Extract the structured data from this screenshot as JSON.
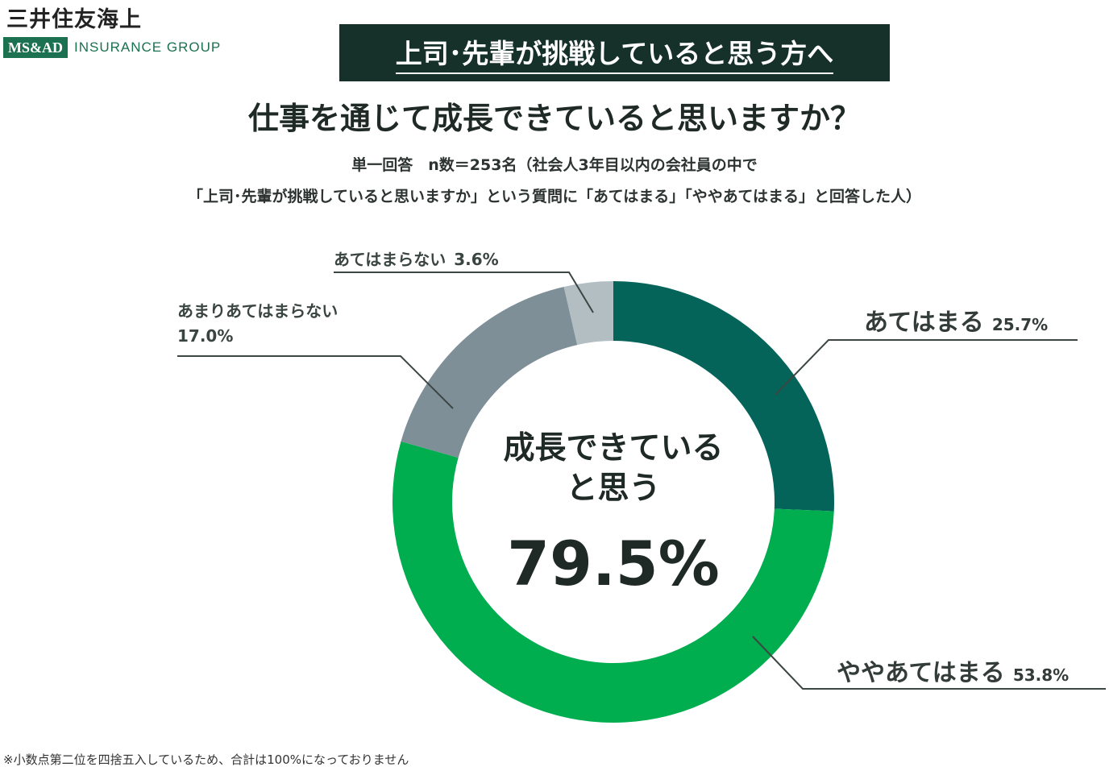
{
  "brand": {
    "name_ja": "三井住友海上",
    "logo_box": "MS&AD",
    "group": "INSURANCE GROUP",
    "color": "#1b7150"
  },
  "banner": {
    "text": "上司･先輩が挑戦していると思う方へ",
    "bg": "#16302a"
  },
  "title": "仕事を通じて成長できていると思いますか？",
  "subtitle_line1": "単一回答　n数＝253名（社会人3年目以内の会社員の中で",
  "subtitle_line2": "「上司･先輩が挑戦していると思いますか」という質問に「あてはまる」「ややあてはまる」と回答した人）",
  "center": {
    "label_line1": "成長できている",
    "label_line2": "と思う",
    "value": "79.5%"
  },
  "footnote": "※小数点第二位を四捨五入しているため、合計は100%になっておりません",
  "chart_data": {
    "type": "pie",
    "donut": true,
    "title": "仕事を通じて成長できていると思いますか？",
    "slices": [
      {
        "label": "あてはまる",
        "value": 25.7,
        "display": "25.7%",
        "color": "#04645a"
      },
      {
        "label": "ややあてはまる",
        "value": 53.8,
        "display": "53.8%",
        "color": "#00ad4f"
      },
      {
        "label": "あまりあてはまらない",
        "value": 17.0,
        "display": "17.0%",
        "color": "#7e8f98"
      },
      {
        "label": "あてはまらない",
        "value": 3.6,
        "display": "3.6%",
        "color": "#b3bec3"
      }
    ]
  }
}
